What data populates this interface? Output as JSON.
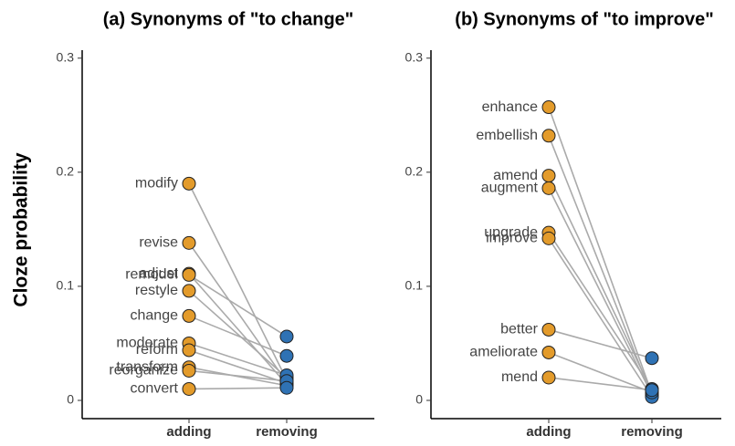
{
  "chart_data": [
    {
      "type": "slope",
      "title": "(a) Synonyms of \"to change\"",
      "ylabel": "Cloze probability",
      "categories": [
        "adding",
        "removing"
      ],
      "point_colors": [
        "#e39b2b",
        "#2f72b4"
      ],
      "line_color": "#aaaaaa",
      "ylim": [
        -0.016,
        0.307
      ],
      "yticks": [
        0,
        0.1,
        0.2,
        0.3
      ],
      "series": [
        {
          "name": "modify",
          "values": [
            0.19,
            0.018
          ]
        },
        {
          "name": "revise",
          "values": [
            0.138,
            0.016
          ]
        },
        {
          "name": "adjust",
          "values": [
            0.111,
            0.014
          ]
        },
        {
          "name": "remodel",
          "values": [
            0.11,
            0.056
          ]
        },
        {
          "name": "restyle",
          "values": [
            0.096,
            0.02
          ]
        },
        {
          "name": "change",
          "values": [
            0.074,
            0.039
          ]
        },
        {
          "name": "moderate",
          "values": [
            0.05,
            0.022
          ]
        },
        {
          "name": "reform",
          "values": [
            0.044,
            0.015
          ]
        },
        {
          "name": "transform",
          "values": [
            0.029,
            0.013
          ]
        },
        {
          "name": "reorganize",
          "values": [
            0.026,
            0.017
          ]
        },
        {
          "name": "convert",
          "values": [
            0.01,
            0.011
          ]
        }
      ]
    },
    {
      "type": "slope",
      "title": "(b) Synonyms of \"to improve\"",
      "categories": [
        "adding",
        "removing"
      ],
      "point_colors": [
        "#e39b2b",
        "#2f72b4"
      ],
      "line_color": "#aaaaaa",
      "ylim": [
        -0.016,
        0.307
      ],
      "yticks": [
        0,
        0.1,
        0.2,
        0.3
      ],
      "series": [
        {
          "name": "enhance",
          "values": [
            0.257,
            0.006
          ]
        },
        {
          "name": "embellish",
          "values": [
            0.232,
            0.004
          ]
        },
        {
          "name": "amend",
          "values": [
            0.197,
            0.008
          ]
        },
        {
          "name": "augment",
          "values": [
            0.186,
            0.005
          ]
        },
        {
          "name": "upgrade",
          "values": [
            0.147,
            0.01
          ]
        },
        {
          "name": "improve",
          "values": [
            0.142,
            0.003
          ]
        },
        {
          "name": "better",
          "values": [
            0.062,
            0.037
          ]
        },
        {
          "name": "ameliorate",
          "values": [
            0.042,
            0.007
          ]
        },
        {
          "name": "mend",
          "values": [
            0.02,
            0.009
          ]
        }
      ]
    }
  ]
}
